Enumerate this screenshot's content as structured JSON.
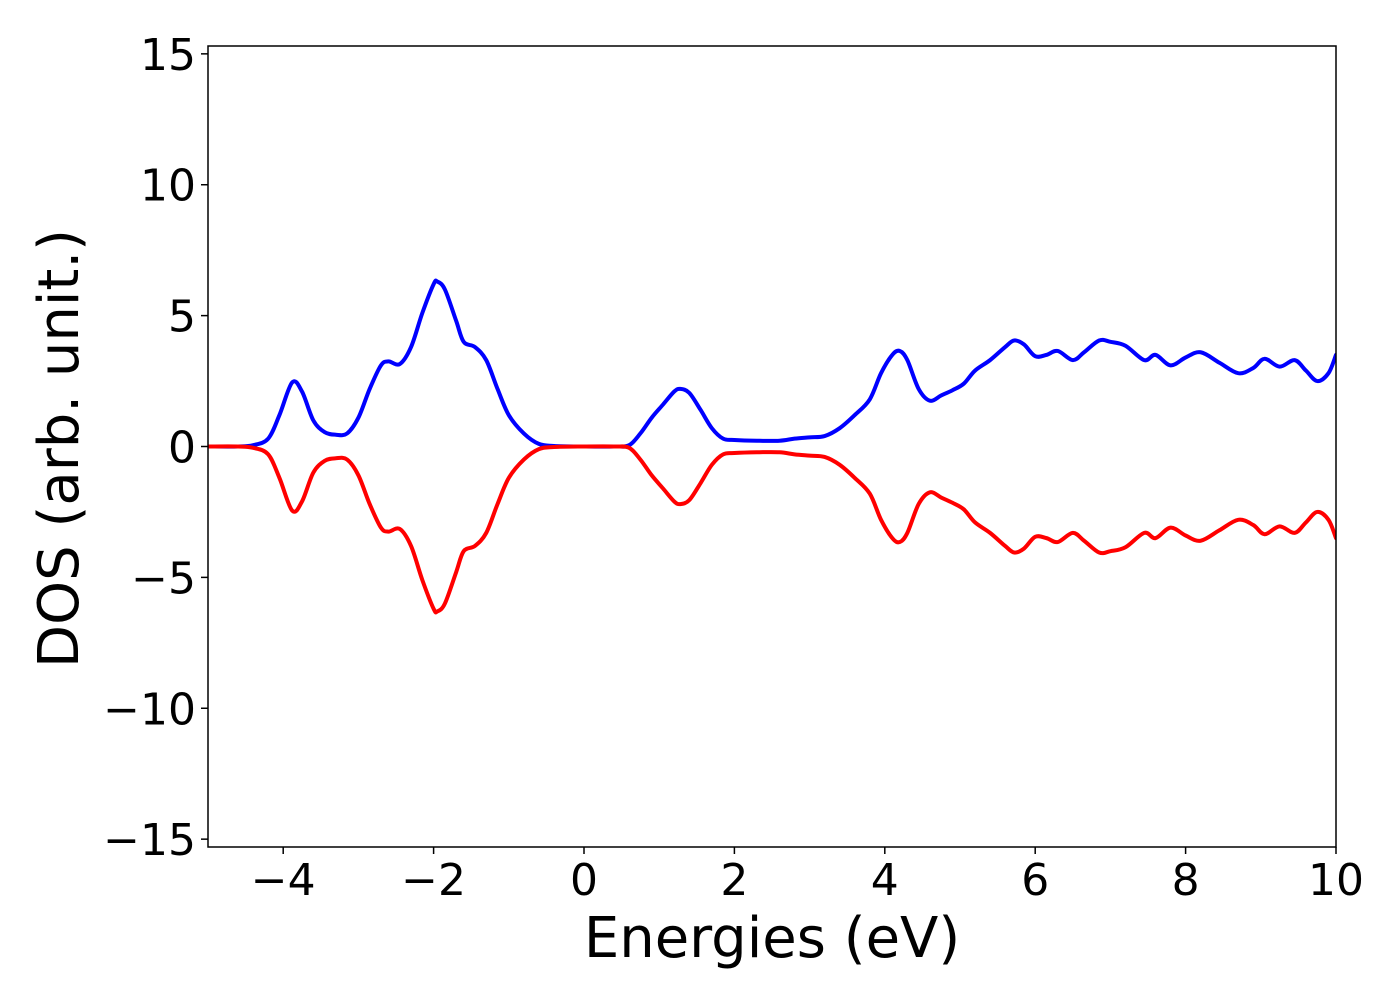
{
  "chart_data": {
    "type": "line",
    "title": "",
    "xlabel": "Energies (eV)",
    "ylabel": "DOS (arb. unit.)",
    "xlim": [
      -5,
      10
    ],
    "ylim": [
      -15.3,
      15.3
    ],
    "x_ticks": [
      -4,
      -2,
      0,
      2,
      4,
      6,
      8,
      10
    ],
    "x_tick_labels": [
      "−4",
      "−2",
      "0",
      "2",
      "4",
      "6",
      "8",
      "10"
    ],
    "y_ticks": [
      -15,
      -10,
      -5,
      0,
      5,
      10,
      15
    ],
    "y_tick_labels": [
      "−15",
      "−10",
      "−5",
      "0",
      "5",
      "10",
      "15"
    ],
    "grid": false,
    "series": [
      {
        "color": "#0000ff",
        "points": [
          [
            -5.0,
            0.0
          ],
          [
            -4.6,
            0.0
          ],
          [
            -4.4,
            0.05
          ],
          [
            -4.2,
            0.3
          ],
          [
            -4.05,
            1.2
          ],
          [
            -3.88,
            2.45
          ],
          [
            -3.75,
            2.1
          ],
          [
            -3.6,
            1.0
          ],
          [
            -3.45,
            0.55
          ],
          [
            -3.3,
            0.45
          ],
          [
            -3.15,
            0.5
          ],
          [
            -3.0,
            1.1
          ],
          [
            -2.85,
            2.2
          ],
          [
            -2.7,
            3.1
          ],
          [
            -2.6,
            3.25
          ],
          [
            -2.45,
            3.15
          ],
          [
            -2.3,
            3.8
          ],
          [
            -2.15,
            5.1
          ],
          [
            -2.0,
            6.2
          ],
          [
            -1.95,
            6.3
          ],
          [
            -1.85,
            6.0
          ],
          [
            -1.7,
            4.8
          ],
          [
            -1.6,
            4.0
          ],
          [
            -1.45,
            3.8
          ],
          [
            -1.3,
            3.3
          ],
          [
            -1.15,
            2.2
          ],
          [
            -1.0,
            1.2
          ],
          [
            -0.8,
            0.5
          ],
          [
            -0.6,
            0.1
          ],
          [
            -0.4,
            0.02
          ],
          [
            0.0,
            0.0
          ],
          [
            0.4,
            0.0
          ],
          [
            0.6,
            0.05
          ],
          [
            0.75,
            0.5
          ],
          [
            0.9,
            1.1
          ],
          [
            1.05,
            1.6
          ],
          [
            1.2,
            2.1
          ],
          [
            1.28,
            2.2
          ],
          [
            1.4,
            2.05
          ],
          [
            1.55,
            1.4
          ],
          [
            1.7,
            0.7
          ],
          [
            1.85,
            0.3
          ],
          [
            2.0,
            0.25
          ],
          [
            2.3,
            0.22
          ],
          [
            2.6,
            0.22
          ],
          [
            2.8,
            0.3
          ],
          [
            3.0,
            0.35
          ],
          [
            3.2,
            0.4
          ],
          [
            3.4,
            0.7
          ],
          [
            3.6,
            1.2
          ],
          [
            3.8,
            1.8
          ],
          [
            3.95,
            2.8
          ],
          [
            4.1,
            3.5
          ],
          [
            4.2,
            3.65
          ],
          [
            4.3,
            3.3
          ],
          [
            4.45,
            2.2
          ],
          [
            4.6,
            1.75
          ],
          [
            4.75,
            1.95
          ],
          [
            4.9,
            2.15
          ],
          [
            5.05,
            2.4
          ],
          [
            5.2,
            2.9
          ],
          [
            5.4,
            3.3
          ],
          [
            5.6,
            3.8
          ],
          [
            5.72,
            4.05
          ],
          [
            5.85,
            3.9
          ],
          [
            6.0,
            3.45
          ],
          [
            6.15,
            3.5
          ],
          [
            6.3,
            3.65
          ],
          [
            6.5,
            3.3
          ],
          [
            6.65,
            3.6
          ],
          [
            6.85,
            4.05
          ],
          [
            7.0,
            4.0
          ],
          [
            7.2,
            3.85
          ],
          [
            7.45,
            3.3
          ],
          [
            7.6,
            3.5
          ],
          [
            7.8,
            3.1
          ],
          [
            8.0,
            3.4
          ],
          [
            8.2,
            3.6
          ],
          [
            8.45,
            3.2
          ],
          [
            8.7,
            2.8
          ],
          [
            8.9,
            3.0
          ],
          [
            9.05,
            3.35
          ],
          [
            9.25,
            3.05
          ],
          [
            9.45,
            3.3
          ],
          [
            9.6,
            2.9
          ],
          [
            9.75,
            2.5
          ],
          [
            9.9,
            2.8
          ],
          [
            10.0,
            3.5
          ]
        ]
      },
      {
        "color": "#ff0000",
        "points": [
          [
            -5.0,
            0.0
          ],
          [
            -4.6,
            0.0
          ],
          [
            -4.4,
            -0.05
          ],
          [
            -4.2,
            -0.3
          ],
          [
            -4.05,
            -1.2
          ],
          [
            -3.88,
            -2.45
          ],
          [
            -3.75,
            -2.1
          ],
          [
            -3.6,
            -1.0
          ],
          [
            -3.45,
            -0.55
          ],
          [
            -3.3,
            -0.45
          ],
          [
            -3.15,
            -0.5
          ],
          [
            -3.0,
            -1.1
          ],
          [
            -2.85,
            -2.2
          ],
          [
            -2.7,
            -3.1
          ],
          [
            -2.6,
            -3.25
          ],
          [
            -2.45,
            -3.15
          ],
          [
            -2.3,
            -3.8
          ],
          [
            -2.15,
            -5.1
          ],
          [
            -2.0,
            -6.2
          ],
          [
            -1.95,
            -6.3
          ],
          [
            -1.85,
            -6.0
          ],
          [
            -1.7,
            -4.8
          ],
          [
            -1.6,
            -4.0
          ],
          [
            -1.45,
            -3.8
          ],
          [
            -1.3,
            -3.3
          ],
          [
            -1.15,
            -2.2
          ],
          [
            -1.0,
            -1.2
          ],
          [
            -0.8,
            -0.5
          ],
          [
            -0.6,
            -0.1
          ],
          [
            -0.4,
            -0.02
          ],
          [
            0.0,
            0.0
          ],
          [
            0.4,
            0.0
          ],
          [
            0.6,
            -0.05
          ],
          [
            0.75,
            -0.5
          ],
          [
            0.9,
            -1.1
          ],
          [
            1.05,
            -1.6
          ],
          [
            1.2,
            -2.1
          ],
          [
            1.28,
            -2.2
          ],
          [
            1.4,
            -2.05
          ],
          [
            1.55,
            -1.4
          ],
          [
            1.7,
            -0.7
          ],
          [
            1.85,
            -0.3
          ],
          [
            2.0,
            -0.25
          ],
          [
            2.3,
            -0.22
          ],
          [
            2.6,
            -0.22
          ],
          [
            2.8,
            -0.3
          ],
          [
            3.0,
            -0.35
          ],
          [
            3.2,
            -0.4
          ],
          [
            3.4,
            -0.7
          ],
          [
            3.6,
            -1.2
          ],
          [
            3.8,
            -1.8
          ],
          [
            3.95,
            -2.8
          ],
          [
            4.1,
            -3.5
          ],
          [
            4.2,
            -3.65
          ],
          [
            4.3,
            -3.3
          ],
          [
            4.45,
            -2.2
          ],
          [
            4.6,
            -1.75
          ],
          [
            4.75,
            -1.95
          ],
          [
            4.9,
            -2.15
          ],
          [
            5.05,
            -2.4
          ],
          [
            5.2,
            -2.9
          ],
          [
            5.4,
            -3.3
          ],
          [
            5.6,
            -3.8
          ],
          [
            5.72,
            -4.05
          ],
          [
            5.85,
            -3.9
          ],
          [
            6.0,
            -3.45
          ],
          [
            6.15,
            -3.5
          ],
          [
            6.3,
            -3.65
          ],
          [
            6.5,
            -3.3
          ],
          [
            6.65,
            -3.6
          ],
          [
            6.85,
            -4.05
          ],
          [
            7.0,
            -4.0
          ],
          [
            7.2,
            -3.85
          ],
          [
            7.45,
            -3.3
          ],
          [
            7.6,
            -3.5
          ],
          [
            7.8,
            -3.1
          ],
          [
            8.0,
            -3.4
          ],
          [
            8.2,
            -3.6
          ],
          [
            8.45,
            -3.2
          ],
          [
            8.7,
            -2.8
          ],
          [
            8.9,
            -3.0
          ],
          [
            9.05,
            -3.35
          ],
          [
            9.25,
            -3.05
          ],
          [
            9.45,
            -3.3
          ],
          [
            9.6,
            -2.9
          ],
          [
            9.75,
            -2.5
          ],
          [
            9.9,
            -2.8
          ],
          [
            10.0,
            -3.5
          ]
        ]
      }
    ]
  }
}
